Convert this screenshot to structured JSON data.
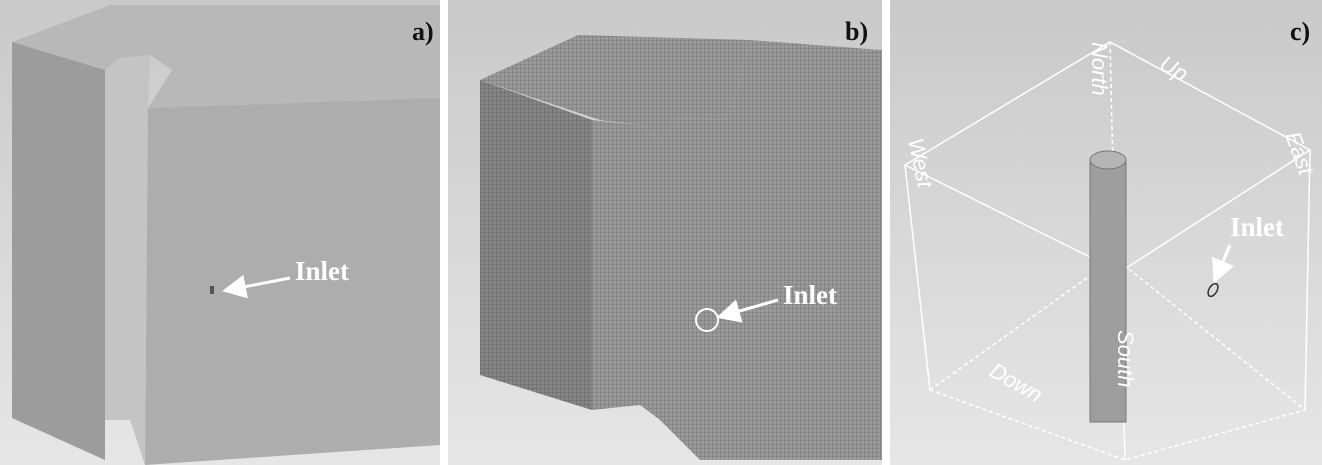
{
  "panels": [
    {
      "label": "a)",
      "annotation": "Inlet"
    },
    {
      "label": "b)",
      "annotation": "Inlet"
    },
    {
      "label": "c)",
      "annotation": "Inlet",
      "faces": {
        "north": "North",
        "up": "Up",
        "west": "West",
        "east": "East",
        "south": "South",
        "down": "Down"
      }
    }
  ]
}
